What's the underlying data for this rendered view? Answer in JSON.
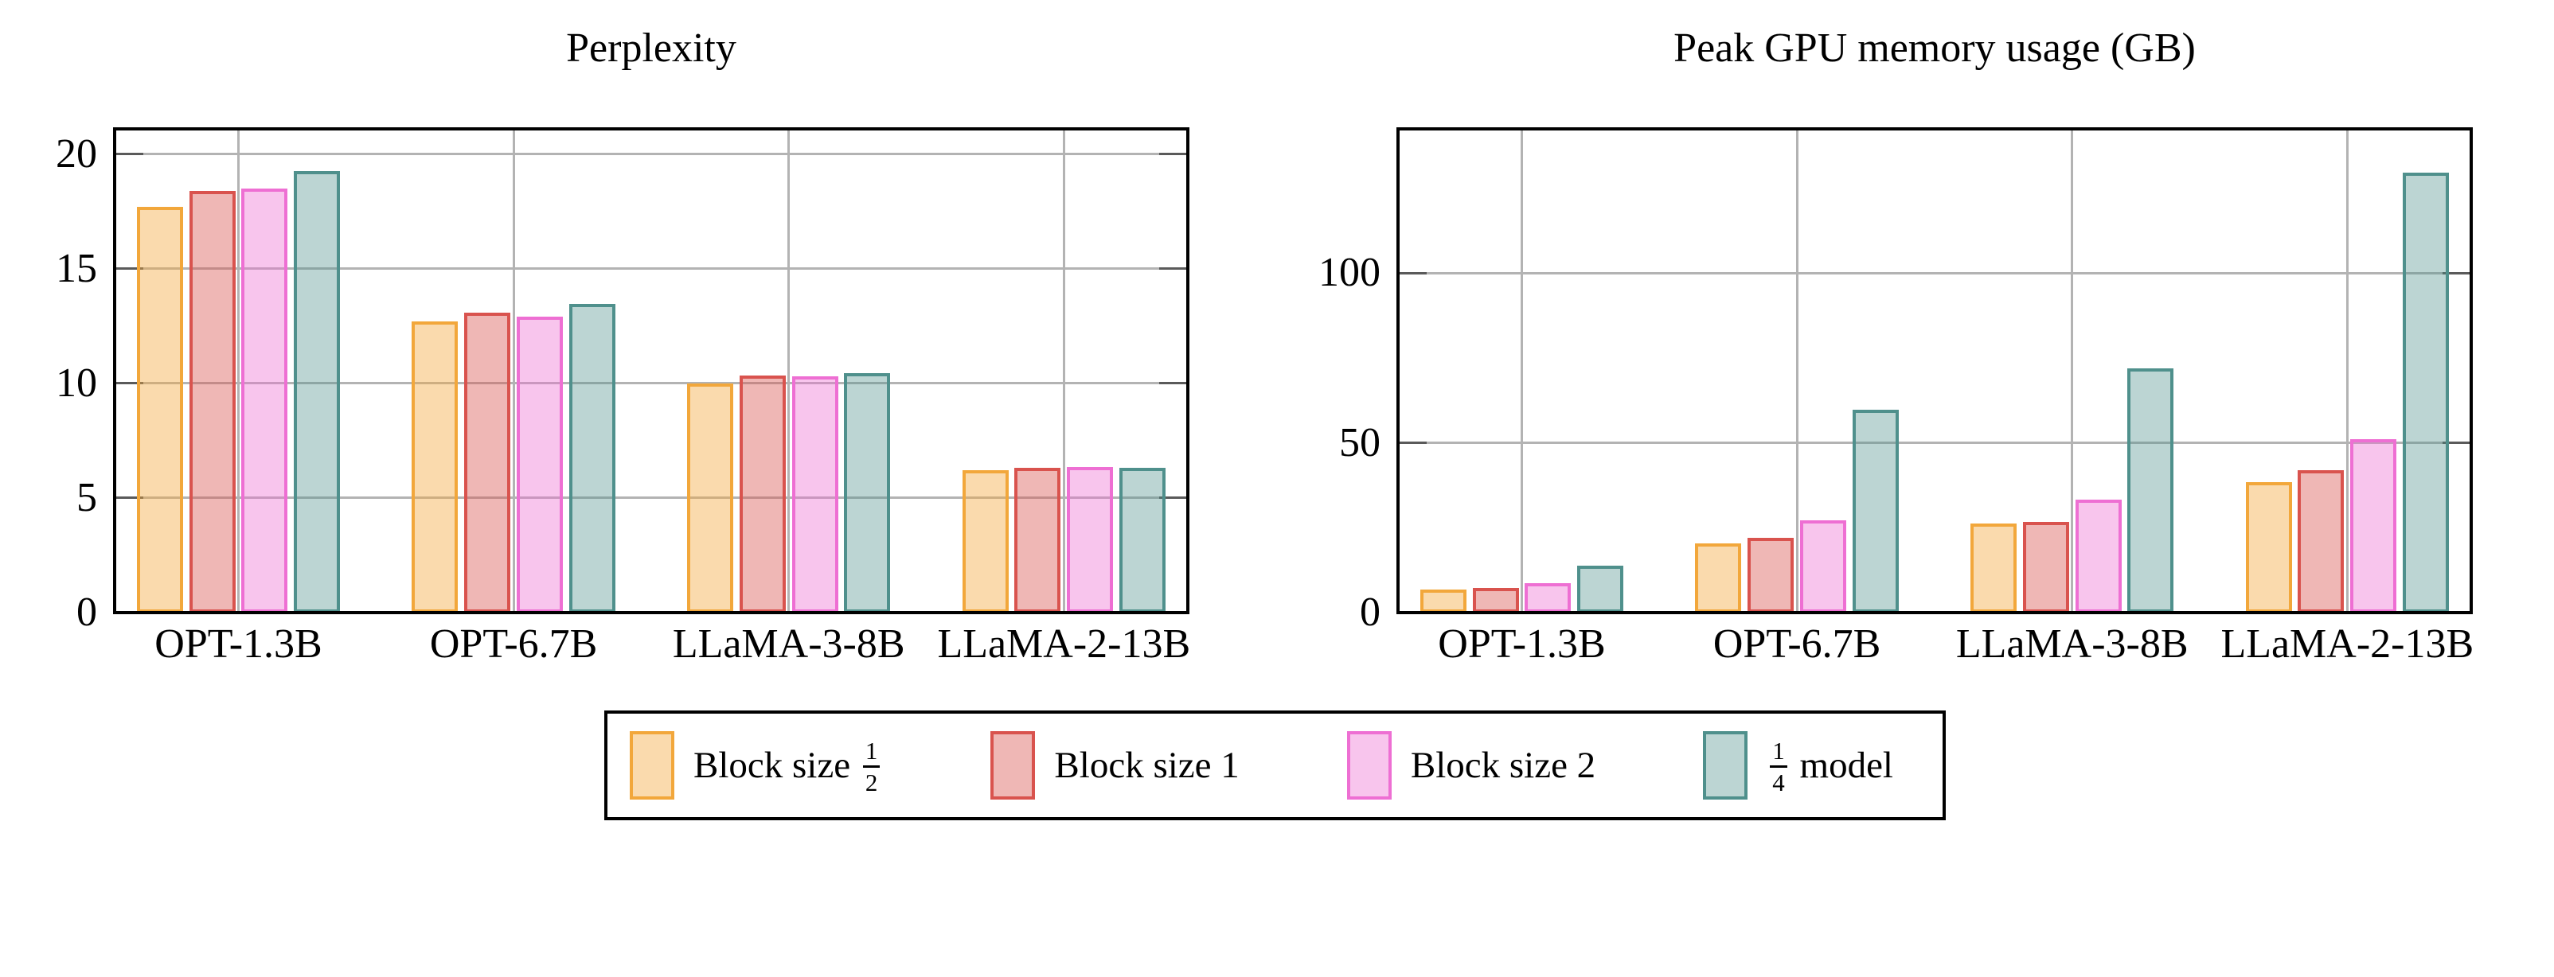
{
  "figure": {
    "background": "#ffffff"
  },
  "legend": {
    "items": [
      {
        "name": "Block size 1/2",
        "prefix": "Block size ",
        "frac": {
          "num": "1",
          "den": "2"
        },
        "suffix": "",
        "edge_color": "#F2A73B",
        "fill_color": "rgba(242,167,59,0.42)"
      },
      {
        "name": "Block size 1",
        "prefix": "Block size 1",
        "frac": null,
        "suffix": "",
        "edge_color": "#D9534E",
        "fill_color": "rgba(217,83,78,0.42)"
      },
      {
        "name": "Block size 2",
        "prefix": "Block size 2",
        "frac": null,
        "suffix": "",
        "edge_color": "#EE6FD3",
        "fill_color": "rgba(238,111,211,0.40)"
      },
      {
        "name": "1/4 model",
        "prefix": "",
        "frac": {
          "num": "1",
          "den": "4"
        },
        "suffix": " model",
        "edge_color": "#4F908C",
        "fill_color": "rgba(79,144,140,0.38)"
      }
    ],
    "border_color": "#000000",
    "position": "below-center"
  },
  "chart_data": [
    {
      "type": "bar",
      "title": "Perplexity",
      "categories": [
        "OPT-1.3B",
        "OPT-6.7B",
        "LLaMA-3-8B",
        "LLaMA-2-13B"
      ],
      "series": [
        {
          "name": "Block size 1/2",
          "values": [
            17.7,
            12.7,
            10.0,
            6.2
          ]
        },
        {
          "name": "Block size 1",
          "values": [
            18.4,
            13.1,
            10.35,
            6.3
          ]
        },
        {
          "name": "Block size 2",
          "values": [
            18.5,
            12.9,
            10.3,
            6.35
          ]
        },
        {
          "name": "1/4 model",
          "values": [
            19.25,
            13.45,
            10.45,
            6.3
          ]
        }
      ],
      "xlabel": "",
      "ylabel": "",
      "yticks": [
        0,
        5,
        10,
        15,
        20
      ],
      "ylim": [
        0,
        21.1
      ],
      "grid": true,
      "gridline_color": "#b3b3b3"
    },
    {
      "type": "bar",
      "title": "Peak GPU memory usage (GB)",
      "categories": [
        "OPT-1.3B",
        "OPT-6.7B",
        "LLaMA-3-8B",
        "LLaMA-2-13B"
      ],
      "series": [
        {
          "name": "Block size 1/2",
          "values": [
            6.8,
            20.5,
            26.2,
            38.5
          ]
        },
        {
          "name": "Block size 1",
          "values": [
            7.2,
            22.0,
            26.8,
            42.0
          ]
        },
        {
          "name": "Block size 2",
          "values": [
            8.6,
            27.3,
            33.2,
            51.2
          ]
        },
        {
          "name": "1/4 model",
          "values": [
            13.9,
            59.8,
            72.0,
            129.7
          ]
        }
      ],
      "xlabel": "",
      "ylabel": "",
      "yticks": [
        0,
        50,
        100
      ],
      "ylim": [
        0,
        142.5
      ],
      "grid": true,
      "gridline_color": "#b3b3b3"
    }
  ]
}
